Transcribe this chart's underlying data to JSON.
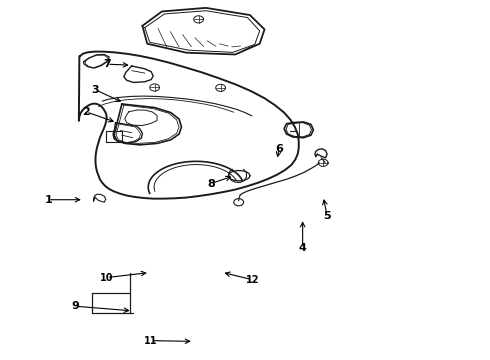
{
  "background_color": "#ffffff",
  "line_color": "#1a1a1a",
  "figsize": [
    4.9,
    3.6
  ],
  "dpi": 100,
  "labels": {
    "1": [
      0.095,
      0.445,
      0.175,
      0.445
    ],
    "2": [
      0.175,
      0.685,
      0.245,
      0.66
    ],
    "3": [
      0.195,
      0.75,
      0.265,
      0.73
    ],
    "4": [
      0.62,
      0.31,
      0.62,
      0.39
    ],
    "5": [
      0.67,
      0.395,
      0.67,
      0.475
    ],
    "6": [
      0.575,
      0.59,
      0.575,
      0.555
    ],
    "7": [
      0.22,
      0.82,
      0.295,
      0.82
    ],
    "8": [
      0.43,
      0.49,
      0.49,
      0.51
    ],
    "9": [
      0.155,
      0.15,
      0.265,
      0.135
    ],
    "10": [
      0.22,
      0.23,
      0.3,
      0.24
    ],
    "11": [
      0.31,
      0.055,
      0.39,
      0.052
    ],
    "12": [
      0.515,
      0.225,
      0.455,
      0.243
    ]
  }
}
